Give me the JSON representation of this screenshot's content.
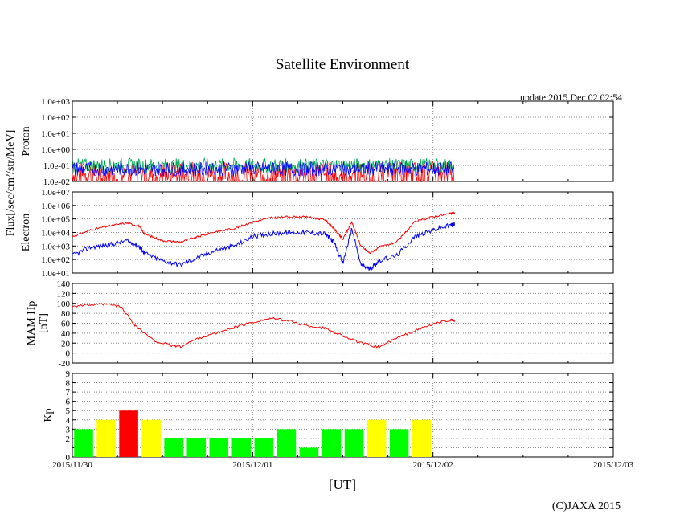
{
  "title": "Satellite Environment",
  "update": "update:2015 Dec 02 02:54",
  "copyright": "(C)JAXA 2015",
  "x_axis": {
    "label": "[UT]",
    "ticks": [
      "2015/11/30",
      "2015/12/01",
      "2015/12/02",
      "2015/12/03"
    ],
    "range_days": [
      0,
      3
    ]
  },
  "shared_ylabel": "Flux[/sec/cm²/str/MeV]",
  "panels": {
    "proton": {
      "ylabel": "Proton",
      "ticks": [
        "1.0e-02",
        "1.0e-01",
        "1.0e+00",
        "1.0e+01",
        "1.0e+02",
        "1.0e+03"
      ]
    },
    "electron": {
      "ylabel": "Electron",
      "ticks": [
        "1.0e+01",
        "1.0e+02",
        "1.0e+03",
        "1.0e+04",
        "1.0e+05",
        "1.0e+06",
        "1.0e+07"
      ]
    },
    "mam": {
      "ylabel_line1": "MAM Hp",
      "ylabel_line2": "[nT]",
      "ticks": [
        "-20",
        "0",
        "20",
        "40",
        "60",
        "80",
        "100",
        "120",
        "140"
      ]
    },
    "kp": {
      "ylabel": "Kp",
      "ticks": [
        "0",
        "1",
        "2",
        "3",
        "4",
        "5",
        "6",
        "7",
        "8",
        "9"
      ]
    }
  },
  "colors": {
    "red": "#ff0000",
    "blue": "#0000ff",
    "green_line": "#00aa55",
    "kp_green": "#00ff00",
    "kp_yellow": "#ffff00",
    "kp_red": "#ff0000"
  },
  "chart_data": [
    {
      "type": "line",
      "panel": "proton",
      "yscale": "log",
      "ylim": [
        0.01,
        1000
      ],
      "x_unit": "days since 2015/11/30 00:00 UT",
      "xlim": [
        0,
        3
      ],
      "series": [
        {
          "color": "blue",
          "x": [
            0,
            0.5,
            1.0,
            1.5,
            2.12
          ],
          "y": [
            0.06,
            0.07,
            0.06,
            0.07,
            0.07
          ]
        },
        {
          "color": "green",
          "x": [
            0,
            0.5,
            1.0,
            1.5,
            2.12
          ],
          "y": [
            0.1,
            0.1,
            0.1,
            0.1,
            0.1
          ]
        },
        {
          "color": "red",
          "x": [
            0,
            0.5,
            1.0,
            1.5,
            2.12
          ],
          "y": [
            0.03,
            0.03,
            0.03,
            0.03,
            0.03
          ]
        }
      ]
    },
    {
      "type": "line",
      "panel": "electron",
      "yscale": "log",
      "ylim": [
        10,
        10000000
      ],
      "xlim": [
        0,
        3
      ],
      "series": [
        {
          "color": "red",
          "x": [
            0,
            0.1,
            0.2,
            0.3,
            0.37,
            0.4,
            0.5,
            0.6,
            0.7,
            0.8,
            0.9,
            1.0,
            1.1,
            1.2,
            1.3,
            1.4,
            1.45,
            1.5,
            1.55,
            1.6,
            1.65,
            1.7,
            1.8,
            1.9,
            2.0,
            2.1,
            2.12
          ],
          "y": [
            5000,
            15000,
            30000,
            50000,
            30000,
            8000,
            2500,
            2000,
            5000,
            12000,
            20000,
            60000,
            120000,
            150000,
            140000,
            90000,
            20000,
            3000,
            60000,
            1000,
            300,
            800,
            2000,
            60000,
            150000,
            250000,
            280000
          ]
        },
        {
          "color": "blue",
          "x": [
            0,
            0.1,
            0.2,
            0.3,
            0.37,
            0.4,
            0.5,
            0.6,
            0.7,
            0.8,
            0.9,
            1.0,
            1.1,
            1.2,
            1.3,
            1.4,
            1.45,
            1.5,
            1.55,
            1.6,
            1.65,
            1.7,
            1.8,
            1.9,
            2.0,
            2.1,
            2.12
          ],
          "y": [
            200,
            800,
            1200,
            2500,
            1000,
            300,
            80,
            40,
            150,
            500,
            1000,
            5000,
            8000,
            10000,
            10000,
            8000,
            2000,
            50,
            20000,
            40,
            20,
            80,
            200,
            5000,
            15000,
            35000,
            40000
          ]
        }
      ]
    },
    {
      "type": "line",
      "panel": "mam",
      "ylim": [
        -20,
        140
      ],
      "xlim": [
        0,
        3
      ],
      "series": [
        {
          "color": "red",
          "x": [
            0,
            0.1,
            0.2,
            0.27,
            0.35,
            0.45,
            0.55,
            0.6,
            0.7,
            0.8,
            0.9,
            1.0,
            1.1,
            1.2,
            1.3,
            1.4,
            1.5,
            1.6,
            1.7,
            1.8,
            1.9,
            2.0,
            2.1,
            2.12
          ],
          "y": [
            95,
            97,
            98,
            93,
            55,
            25,
            15,
            13,
            30,
            40,
            52,
            62,
            70,
            65,
            55,
            50,
            35,
            20,
            12,
            30,
            45,
            58,
            67,
            65
          ]
        }
      ]
    },
    {
      "type": "bar",
      "panel": "kp",
      "ylim": [
        0,
        9
      ],
      "xlim": [
        0,
        3
      ],
      "bar_width_days": 0.125,
      "values": [
        3,
        4,
        5,
        4,
        2,
        2,
        2,
        2,
        2,
        3,
        1,
        3,
        3,
        4,
        3,
        4
      ],
      "bar_colors": [
        "green",
        "yellow",
        "red",
        "yellow",
        "green",
        "green",
        "green",
        "green",
        "green",
        "green",
        "green",
        "green",
        "green",
        "yellow",
        "green",
        "yellow"
      ]
    }
  ]
}
